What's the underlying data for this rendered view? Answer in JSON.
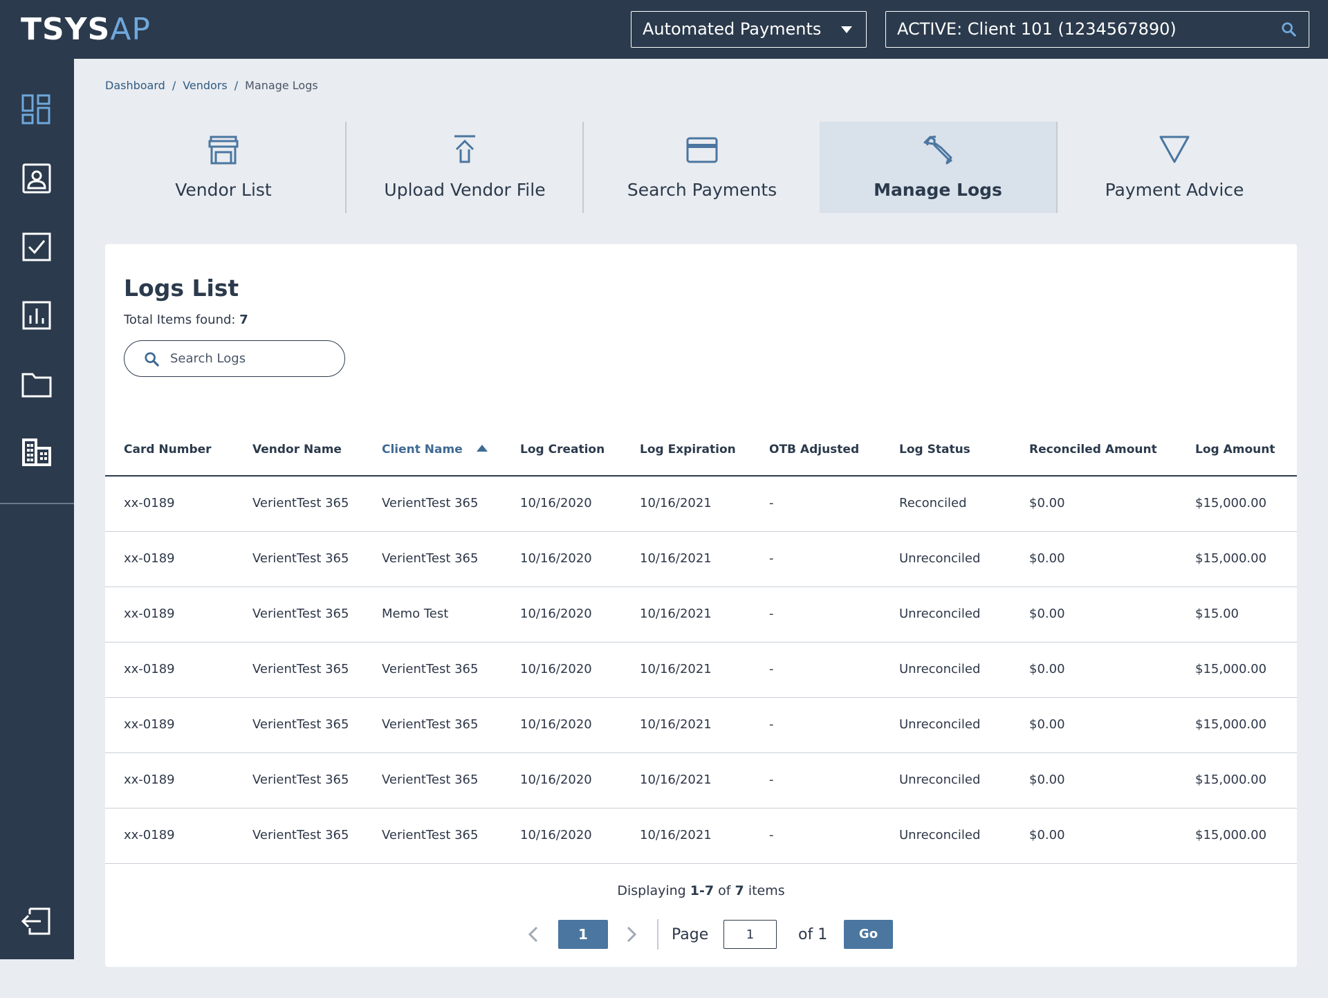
{
  "header": {
    "logo_bold": "TSYS",
    "logo_light": "AP",
    "product_select": "Automated Payments",
    "active_client": "ACTIVE: Client 101 (1234567890)"
  },
  "sidebar": {
    "icons": [
      "dashboard-icon",
      "contact-card-icon",
      "checkbox-icon",
      "bar-chart-icon",
      "folder-icon",
      "building-icon",
      "logout-icon"
    ]
  },
  "breadcrumb": {
    "items": [
      "Dashboard",
      "Vendors",
      "Manage Logs"
    ],
    "separator": "/"
  },
  "tabs": [
    {
      "label": "Vendor List",
      "icon": "storefront-icon"
    },
    {
      "label": "Upload Vendor File",
      "icon": "upload-icon"
    },
    {
      "label": "Search Payments",
      "icon": "credit-card-icon"
    },
    {
      "label": "Manage Logs",
      "icon": "wrench-icon",
      "active": true
    },
    {
      "label": "Payment Advice",
      "icon": "triangle-icon"
    }
  ],
  "logs": {
    "title": "Logs List",
    "total_label": "Total Items found:",
    "total_count": "7",
    "search_placeholder": "Search Logs",
    "columns": [
      "Card Number",
      "Vendor Name",
      "Client Name",
      "Log Creation",
      "Log Expiration",
      "OTB Adjusted",
      "Log Status",
      "Reconciled Amount",
      "Log Amount"
    ],
    "sorted_column": "Client Name",
    "rows": [
      [
        "xx-0189",
        "VerientTest 365",
        "VerientTest 365",
        "10/16/2020",
        "10/16/2021",
        "-",
        "Reconciled",
        "$0.00",
        "$15,000.00"
      ],
      [
        "xx-0189",
        "VerientTest 365",
        "VerientTest 365",
        "10/16/2020",
        "10/16/2021",
        "-",
        "Unreconciled",
        "$0.00",
        "$15,000.00"
      ],
      [
        "xx-0189",
        "VerientTest 365",
        "Memo Test",
        "10/16/2020",
        "10/16/2021",
        "-",
        "Unreconciled",
        "$0.00",
        "$15.00"
      ],
      [
        "xx-0189",
        "VerientTest 365",
        "VerientTest 365",
        "10/16/2020",
        "10/16/2021",
        "-",
        "Unreconciled",
        "$0.00",
        "$15,000.00"
      ],
      [
        "xx-0189",
        "VerientTest 365",
        "VerientTest 365",
        "10/16/2020",
        "10/16/2021",
        "-",
        "Unreconciled",
        "$0.00",
        "$15,000.00"
      ],
      [
        "xx-0189",
        "VerientTest 365",
        "VerientTest 365",
        "10/16/2020",
        "10/16/2021",
        "-",
        "Unreconciled",
        "$0.00",
        "$15,000.00"
      ],
      [
        "xx-0189",
        "VerientTest 365",
        "VerientTest 365",
        "10/16/2020",
        "10/16/2021",
        "-",
        "Unreconciled",
        "$0.00",
        "$15,000.00"
      ]
    ]
  },
  "pagination": {
    "displaying_label": "Displaying",
    "range": "1-7",
    "of_label": "of",
    "total": "7",
    "items_label": "items",
    "current_page": "1",
    "page_label": "Page",
    "page_input_value": "1",
    "of_pages": "of 1",
    "go_label": "Go"
  },
  "colors": {
    "nav_bg": "#2b3a4c",
    "accent": "#4a76a0",
    "logo_accent": "#6fa8dc",
    "page_bg": "#e9ecf0",
    "active_tab_bg": "#d9e1ea"
  }
}
